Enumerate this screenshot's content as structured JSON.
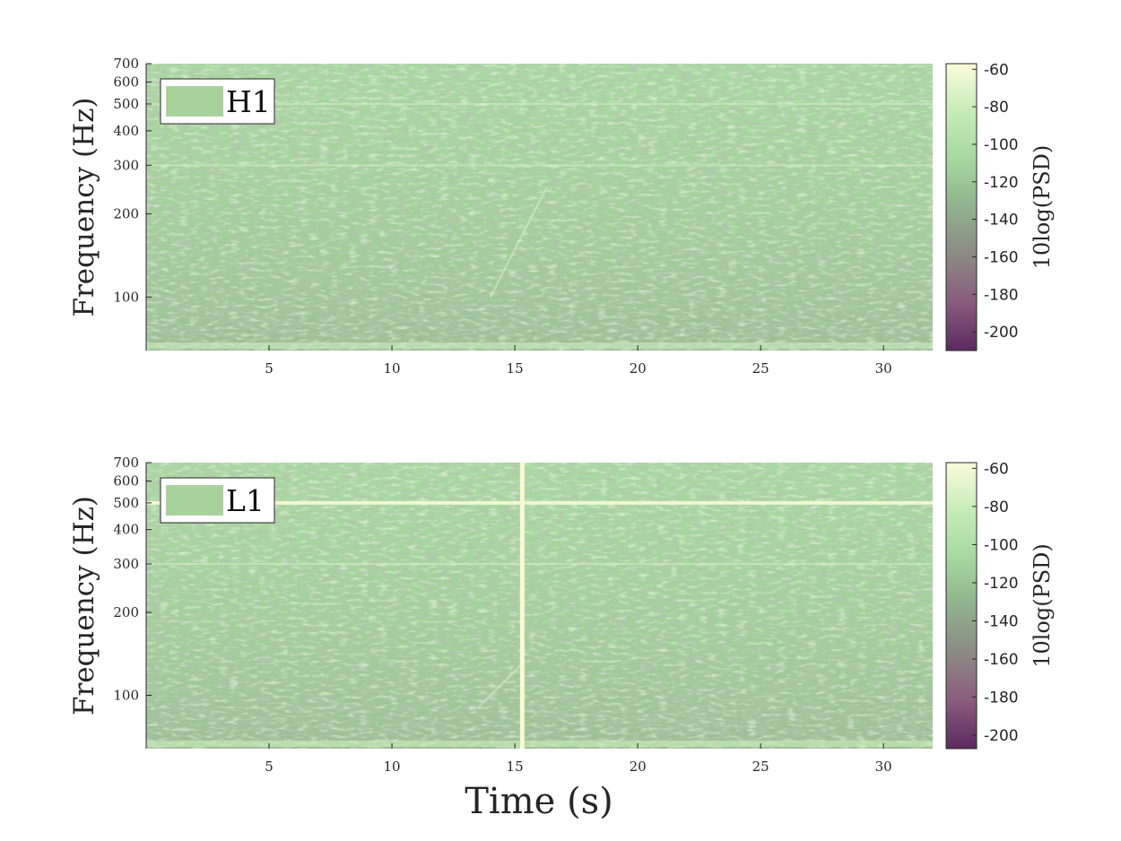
{
  "chart_data": [
    {
      "type": "heatmap",
      "xlabel": "",
      "ylabel": "Frequency (Hz)",
      "xticks": [
        "5",
        "10",
        "15",
        "20",
        "25",
        "30"
      ],
      "xlim": [
        0,
        32
      ],
      "yscale": "log",
      "yticks": [
        "100",
        "200",
        "300",
        "400",
        "500",
        "600",
        "700"
      ],
      "ylim": [
        64,
        700
      ],
      "legend": {
        "label": "H1",
        "placement": "top-left",
        "color": "#a9d39d"
      },
      "colorbar": {
        "label": "10log(PSD)",
        "ticks": [
          "-60",
          "-80",
          "-100",
          "-120",
          "-140",
          "-160",
          "-180",
          "-200"
        ],
        "range": [
          -210,
          -57
        ],
        "colors": [
          "#5b2a5e",
          "#8a5b7e",
          "#8c8a84",
          "#8fb28c",
          "#a6d8a0",
          "#c6ecb8",
          "#fafbdb"
        ]
      },
      "features": {
        "lines_hz": [
          300,
          500
        ],
        "chirp": {
          "t_start": 14,
          "t_end": 16.3,
          "f_start": 100,
          "f_end": 250
        }
      }
    },
    {
      "type": "heatmap",
      "xlabel": "Time (s)",
      "ylabel": "Frequency (Hz)",
      "xticks": [
        "5",
        "10",
        "15",
        "20",
        "25",
        "30"
      ],
      "xlim": [
        0,
        32
      ],
      "yscale": "log",
      "yticks": [
        "100",
        "200",
        "300",
        "400",
        "500",
        "600",
        "700"
      ],
      "ylim": [
        64,
        700
      ],
      "legend": {
        "label": "L1",
        "placement": "top-left",
        "color": "#a9d39d"
      },
      "colorbar": {
        "label": "10log(PSD)",
        "ticks": [
          "-60",
          "-80",
          "-100",
          "-120",
          "-140",
          "-160",
          "-180",
          "-200"
        ],
        "range": [
          -207,
          -57
        ],
        "colors": [
          "#5b2a5e",
          "#8a5b7e",
          "#8c8a84",
          "#8fb28c",
          "#a6d8a0",
          "#c6ecb8",
          "#fafbdb"
        ]
      },
      "features": {
        "lines_hz": [
          300,
          500
        ],
        "glitch_t": 15.3,
        "chirp": {
          "t_start": 13.5,
          "t_end": 15.3,
          "f_start": 90,
          "f_end": 130
        }
      }
    }
  ]
}
